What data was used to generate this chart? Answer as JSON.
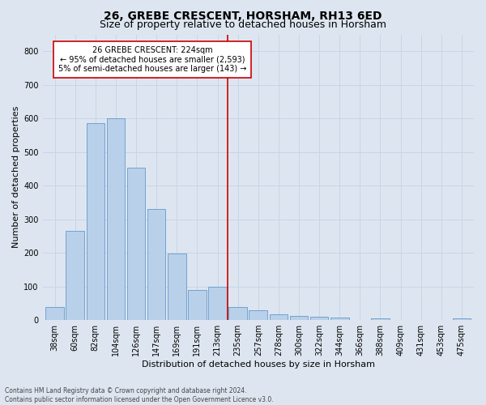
{
  "title": "26, GREBE CRESCENT, HORSHAM, RH13 6ED",
  "subtitle": "Size of property relative to detached houses in Horsham",
  "xlabel": "Distribution of detached houses by size in Horsham",
  "ylabel": "Number of detached properties",
  "footer_line1": "Contains HM Land Registry data © Crown copyright and database right 2024.",
  "footer_line2": "Contains public sector information licensed under the Open Government Licence v3.0.",
  "categories": [
    "38sqm",
    "60sqm",
    "82sqm",
    "104sqm",
    "126sqm",
    "147sqm",
    "169sqm",
    "191sqm",
    "213sqm",
    "235sqm",
    "257sqm",
    "278sqm",
    "300sqm",
    "322sqm",
    "344sqm",
    "366sqm",
    "388sqm",
    "409sqm",
    "431sqm",
    "453sqm",
    "475sqm"
  ],
  "values": [
    38,
    265,
    585,
    600,
    453,
    330,
    198,
    90,
    100,
    38,
    30,
    18,
    12,
    10,
    8,
    0,
    5,
    0,
    0,
    0,
    5
  ],
  "bar_color": "#b8d0ea",
  "bar_edge_color": "#6699cc",
  "annotation_line_color": "#cc0000",
  "annotation_box_text": "26 GREBE CRESCENT: 224sqm\n← 95% of detached houses are smaller (2,593)\n5% of semi-detached houses are larger (143) →",
  "annotation_box_edge_color": "#cc0000",
  "annotation_box_bg": "#ffffff",
  "grid_color": "#c8d4e8",
  "background_color": "#dde6f0",
  "ylim": [
    0,
    850
  ],
  "yticks": [
    0,
    100,
    200,
    300,
    400,
    500,
    600,
    700,
    800
  ],
  "title_fontsize": 10,
  "subtitle_fontsize": 9,
  "tick_fontsize": 7,
  "ylabel_fontsize": 8,
  "xlabel_fontsize": 8,
  "annotation_fontsize": 7,
  "footer_fontsize": 5.5
}
